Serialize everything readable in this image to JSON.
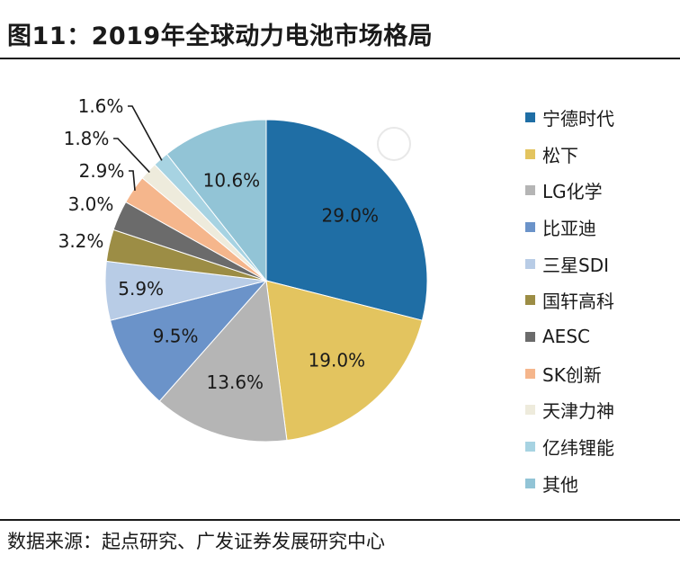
{
  "title": "图11：2019年全球动力电池市场格局",
  "source": "数据来源：起点研究、广发证券发展研究中心",
  "colors": {
    "宁德时代": "#1f6ea5",
    "松下": "#e3c45f",
    "LG化学": "#b5b5b5",
    "比亚迪": "#6b93c9",
    "三星SDI": "#b8cce6",
    "国轩高科": "#9c8d45",
    "AESC": "#6b6b6b",
    "SK创新": "#f5b68c",
    "天津力神": "#eeebdc",
    "亿纬锂能": "#a7d3e2",
    "其他": "#92c4d6"
  },
  "chart_data": {
    "type": "pie",
    "labels": [
      "宁德时代",
      "松下",
      "LG化学",
      "比亚迪",
      "三星SDI",
      "国轩高科",
      "AESC",
      "SK创新",
      "天津力神",
      "亿纬锂能",
      "其他"
    ],
    "values": [
      29.0,
      19.0,
      13.6,
      9.5,
      5.9,
      3.2,
      3.0,
      2.9,
      1.8,
      1.6,
      10.6
    ],
    "value_labels": [
      "29.0%",
      "19.0%",
      "13.6%",
      "9.5%",
      "5.9%",
      "3.2%",
      "3.0%",
      "2.9%",
      "1.8%",
      "1.6%",
      "10.6%"
    ],
    "legend_position": "right"
  }
}
